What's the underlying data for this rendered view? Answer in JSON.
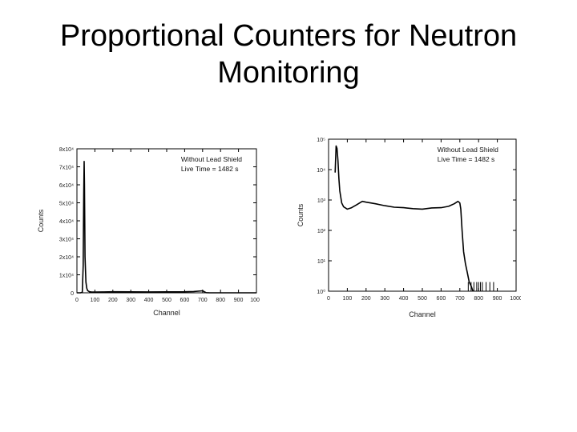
{
  "slide": {
    "title_line1": "Proportional Counters for Neutron",
    "title_line2": "Monitoring"
  },
  "chart_data": [
    {
      "type": "line",
      "scale": "linear",
      "xlabel": "Channel",
      "ylabel": "Counts",
      "xlim": [
        0,
        1000
      ],
      "ylim": [
        0,
        80000
      ],
      "x_ticks": [
        {
          "value": 0,
          "label": "0"
        },
        {
          "value": 100,
          "label": "100"
        },
        {
          "value": 200,
          "label": "200"
        },
        {
          "value": 300,
          "label": "300"
        },
        {
          "value": 400,
          "label": "400"
        },
        {
          "value": 500,
          "label": "500"
        },
        {
          "value": 600,
          "label": "600"
        },
        {
          "value": 700,
          "label": "700"
        },
        {
          "value": 800,
          "label": "800"
        },
        {
          "value": 900,
          "label": "900"
        },
        {
          "value": 1000,
          "label": "1000"
        }
      ],
      "y_ticks": [
        {
          "value": 0,
          "label": "0"
        },
        {
          "value": 10000,
          "label": "1x10⁴"
        },
        {
          "value": 20000,
          "label": "2x10⁴"
        },
        {
          "value": 30000,
          "label": "3x10⁴"
        },
        {
          "value": 40000,
          "label": "4x10⁴"
        },
        {
          "value": 50000,
          "label": "5x10⁴"
        },
        {
          "value": 60000,
          "label": "6x10⁴"
        },
        {
          "value": 70000,
          "label": "7x10⁴"
        },
        {
          "value": 80000,
          "label": "8x10⁴"
        }
      ],
      "annotations": [
        "Without Lead Shield",
        "Live Time = 1482 s"
      ],
      "series": [
        {
          "x": [
            0,
            20,
            30,
            35,
            38,
            40,
            42,
            45,
            50,
            55,
            60,
            70,
            80,
            100,
            150,
            200,
            300,
            400,
            500,
            600,
            650,
            700,
            710,
            720,
            740,
            760,
            800,
            900,
            1000
          ],
          "y": [
            0,
            0,
            300,
            15000,
            55000,
            73000,
            60000,
            20000,
            6000,
            2500,
            1200,
            600,
            500,
            450,
            500,
            600,
            550,
            480,
            520,
            600,
            700,
            1100,
            600,
            100,
            20,
            5,
            0,
            0,
            0
          ]
        }
      ]
    },
    {
      "type": "line",
      "scale": "log",
      "xlabel": "Channel",
      "ylabel": "Counts",
      "xlim": [
        0,
        1000
      ],
      "ylim": [
        1,
        100000
      ],
      "x_ticks": [
        {
          "value": 0,
          "label": "0"
        },
        {
          "value": 100,
          "label": "100"
        },
        {
          "value": 200,
          "label": "200"
        },
        {
          "value": 300,
          "label": "300"
        },
        {
          "value": 400,
          "label": "400"
        },
        {
          "value": 500,
          "label": "500"
        },
        {
          "value": 600,
          "label": "600"
        },
        {
          "value": 700,
          "label": "700"
        },
        {
          "value": 800,
          "label": "800"
        },
        {
          "value": 900,
          "label": "900"
        },
        {
          "value": 1000,
          "label": "1000"
        }
      ],
      "y_ticks": [
        {
          "value": 1,
          "label": "10⁰"
        },
        {
          "value": 10,
          "label": "10¹"
        },
        {
          "value": 100,
          "label": "10²"
        },
        {
          "value": 1000,
          "label": "10³"
        },
        {
          "value": 10000,
          "label": "10⁴"
        },
        {
          "value": 100000,
          "label": "10⁵"
        }
      ],
      "annotations": [
        "Without Lead Shield",
        "Live Time = 1482 s"
      ],
      "series": [
        {
          "x": [
            35,
            40,
            45,
            50,
            55,
            60,
            70,
            80,
            100,
            120,
            150,
            180,
            200,
            250,
            300,
            350,
            400,
            450,
            500,
            550,
            600,
            640,
            670,
            690,
            700,
            705,
            712,
            720,
            730,
            740,
            750,
            760,
            770
          ],
          "y": [
            8000,
            60000,
            50000,
            20000,
            5000,
            2000,
            800,
            600,
            500,
            550,
            700,
            900,
            850,
            750,
            650,
            580,
            560,
            520,
            500,
            550,
            560,
            620,
            750,
            900,
            800,
            500,
            100,
            20,
            8,
            4,
            2,
            1.5,
            1
          ]
        }
      ],
      "noise_x": [
        745,
        760,
        775,
        790,
        800,
        810,
        820,
        840,
        860,
        880
      ]
    }
  ]
}
